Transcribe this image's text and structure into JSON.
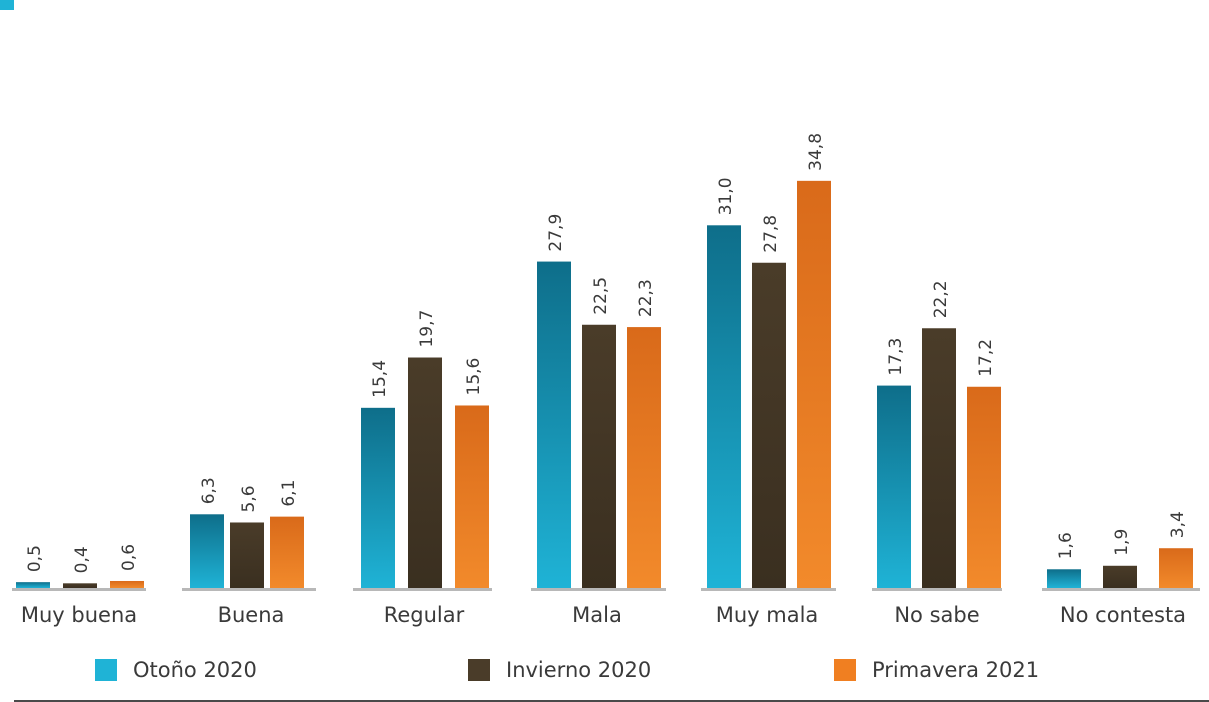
{
  "colors": {
    "otono": "#1fb3d6",
    "invierno": "#4a3c29",
    "primavera": "#f07f21",
    "axis": "#b8b8b8",
    "text": "#3a3a3a"
  },
  "legend": [
    {
      "label": "Otoño 2020",
      "color": "#1fb3d6"
    },
    {
      "label": "Invierno 2020",
      "color": "#4a3c29"
    },
    {
      "label": "Primavera 2021",
      "color": "#f07f21"
    }
  ],
  "chart_data": {
    "type": "bar",
    "title": "",
    "xlabel": "",
    "ylabel": "",
    "categories": [
      "Muy buena",
      "Buena",
      "Regular",
      "Mala",
      "Muy mala",
      "No sabe",
      "No contesta"
    ],
    "series": [
      {
        "name": "Otoño 2020",
        "values": [
          0.5,
          6.3,
          15.4,
          27.9,
          31.0,
          17.3,
          1.6
        ],
        "labels": [
          "0,5",
          "6,3",
          "15,4",
          "27,9",
          "31,0",
          "17,3",
          "1,6"
        ]
      },
      {
        "name": "Invierno 2020",
        "values": [
          0.4,
          5.6,
          19.7,
          22.5,
          27.8,
          22.2,
          1.9
        ],
        "labels": [
          "0,4",
          "5,6",
          "19,7",
          "22,5",
          "27,8",
          "22,2",
          "1,9"
        ]
      },
      {
        "name": "Primavera 2021",
        "values": [
          0.6,
          6.1,
          15.6,
          22.3,
          34.8,
          17.2,
          3.4
        ],
        "labels": [
          "0,6",
          "6,1",
          "15,6",
          "22,3",
          "34,8",
          "17,2",
          "3,4"
        ]
      }
    ],
    "ylim": [
      0,
      40
    ],
    "grid": false,
    "legend_position": "bottom"
  }
}
